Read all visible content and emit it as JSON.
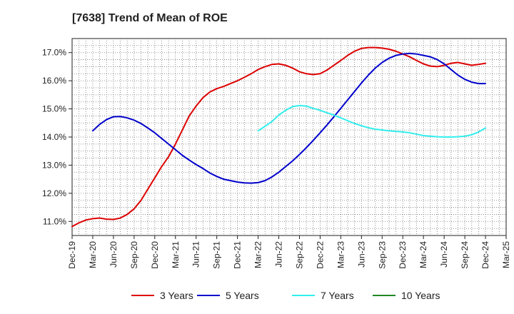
{
  "chart_data": {
    "type": "line",
    "title": "[7638]  Trend of Mean of ROE",
    "xlabel": "",
    "ylabel": "",
    "grid": true,
    "legend_position": "bottom",
    "x_ticks": [
      "Dec-19",
      "Mar-20",
      "Jun-20",
      "Sep-20",
      "Dec-20",
      "Mar-21",
      "Jun-21",
      "Sep-21",
      "Dec-21",
      "Mar-22",
      "Jun-22",
      "Sep-22",
      "Dec-22",
      "Mar-23",
      "Jun-23",
      "Sep-23",
      "Dec-23",
      "Mar-24",
      "Jun-24",
      "Sep-24",
      "Dec-24",
      "Mar-25"
    ],
    "y_ticks": [
      11.0,
      12.0,
      13.0,
      14.0,
      15.0,
      16.0,
      17.0
    ],
    "y_tick_labels": [
      "11.0%",
      "12.0%",
      "13.0%",
      "14.0%",
      "15.0%",
      "16.0%",
      "17.0%"
    ],
    "ylim": [
      10.5,
      17.5
    ],
    "series": [
      {
        "name": "3 Years",
        "color": "#dd0000",
        "x": [
          "Dec-19",
          "Jan-20",
          "Feb-20",
          "Mar-20",
          "Apr-20",
          "May-20",
          "Jun-20",
          "Jul-20",
          "Aug-20",
          "Sep-20",
          "Oct-20",
          "Nov-20",
          "Dec-20",
          "Jan-21",
          "Feb-21",
          "Mar-21",
          "Apr-21",
          "May-21",
          "Jun-21",
          "Jul-21",
          "Aug-21",
          "Sep-21",
          "Oct-21",
          "Nov-21",
          "Dec-21",
          "Jan-22",
          "Feb-22",
          "Mar-22",
          "Apr-22",
          "May-22",
          "Jun-22",
          "Jul-22",
          "Aug-22",
          "Sep-22",
          "Oct-22",
          "Nov-22",
          "Dec-22",
          "Jan-23",
          "Feb-23",
          "Mar-23",
          "Apr-23",
          "May-23",
          "Jun-23",
          "Jul-23",
          "Aug-23",
          "Sep-23",
          "Oct-23",
          "Nov-23",
          "Dec-23",
          "Jan-24",
          "Feb-24",
          "Mar-24",
          "Apr-24",
          "May-24",
          "Jun-24",
          "Jul-24",
          "Aug-24",
          "Sep-24",
          "Oct-24",
          "Nov-24",
          "Dec-24"
        ],
        "values": [
          10.82,
          10.95,
          11.05,
          11.1,
          11.12,
          11.08,
          11.07,
          11.12,
          11.25,
          11.45,
          11.75,
          12.15,
          12.55,
          12.95,
          13.3,
          13.75,
          14.25,
          14.75,
          15.1,
          15.4,
          15.6,
          15.72,
          15.8,
          15.9,
          16.0,
          16.12,
          16.25,
          16.4,
          16.5,
          16.58,
          16.6,
          16.55,
          16.45,
          16.32,
          16.25,
          16.22,
          16.25,
          16.38,
          16.55,
          16.72,
          16.9,
          17.05,
          17.15,
          17.18,
          17.18,
          17.16,
          17.12,
          17.05,
          16.95,
          16.85,
          16.72,
          16.6,
          16.52,
          16.5,
          16.55,
          16.62,
          16.65,
          16.6,
          16.55,
          16.58,
          16.62
        ]
      },
      {
        "name": "5 Years",
        "color": "#0000cc",
        "x": [
          "Mar-20",
          "Apr-20",
          "May-20",
          "Jun-20",
          "Jul-20",
          "Aug-20",
          "Sep-20",
          "Oct-20",
          "Nov-20",
          "Dec-20",
          "Jan-21",
          "Feb-21",
          "Mar-21",
          "Apr-21",
          "May-21",
          "Jun-21",
          "Jul-21",
          "Aug-21",
          "Sep-21",
          "Oct-21",
          "Nov-21",
          "Dec-21",
          "Jan-22",
          "Feb-22",
          "Mar-22",
          "Apr-22",
          "May-22",
          "Jun-22",
          "Jul-22",
          "Aug-22",
          "Sep-22",
          "Oct-22",
          "Nov-22",
          "Dec-22",
          "Jan-23",
          "Feb-23",
          "Mar-23",
          "Apr-23",
          "May-23",
          "Jun-23",
          "Jul-23",
          "Aug-23",
          "Sep-23",
          "Oct-23",
          "Nov-23",
          "Dec-23",
          "Jan-24",
          "Feb-24",
          "Mar-24",
          "Apr-24",
          "May-24",
          "Jun-24",
          "Jul-24",
          "Aug-24",
          "Sep-24",
          "Oct-24",
          "Nov-24",
          "Dec-24"
        ],
        "values": [
          14.22,
          14.45,
          14.62,
          14.72,
          14.73,
          14.68,
          14.6,
          14.48,
          14.32,
          14.15,
          13.95,
          13.75,
          13.55,
          13.35,
          13.18,
          13.02,
          12.88,
          12.72,
          12.6,
          12.5,
          12.45,
          12.4,
          12.37,
          12.36,
          12.38,
          12.45,
          12.58,
          12.75,
          12.95,
          13.15,
          13.38,
          13.62,
          13.88,
          14.15,
          14.43,
          14.72,
          15.02,
          15.32,
          15.62,
          15.92,
          16.2,
          16.45,
          16.65,
          16.8,
          16.9,
          16.95,
          16.97,
          16.95,
          16.9,
          16.85,
          16.75,
          16.6,
          16.4,
          16.2,
          16.05,
          15.95,
          15.9,
          15.9
        ]
      },
      {
        "name": "7 Years",
        "color": "#33eeee",
        "x": [
          "Mar-22",
          "Apr-22",
          "May-22",
          "Jun-22",
          "Jul-22",
          "Aug-22",
          "Sep-22",
          "Oct-22",
          "Nov-22",
          "Dec-22",
          "Jan-23",
          "Feb-23",
          "Mar-23",
          "Apr-23",
          "May-23",
          "Jun-23",
          "Jul-23",
          "Aug-23",
          "Sep-23",
          "Oct-23",
          "Nov-23",
          "Dec-23",
          "Jan-24",
          "Feb-24",
          "Mar-24",
          "Apr-24",
          "May-24",
          "Jun-24",
          "Jul-24",
          "Aug-24",
          "Sep-24",
          "Oct-24",
          "Nov-24",
          "Dec-24"
        ],
        "values": [
          14.22,
          14.38,
          14.55,
          14.78,
          14.95,
          15.08,
          15.12,
          15.1,
          15.02,
          14.95,
          14.86,
          14.78,
          14.68,
          14.58,
          14.48,
          14.4,
          14.33,
          14.28,
          14.25,
          14.22,
          14.2,
          14.18,
          14.15,
          14.1,
          14.05,
          14.03,
          14.01,
          14.0,
          14.0,
          14.01,
          14.03,
          14.08,
          14.18,
          14.32
        ]
      },
      {
        "name": "10 Years",
        "color": "#228822",
        "x": [],
        "values": []
      }
    ]
  }
}
